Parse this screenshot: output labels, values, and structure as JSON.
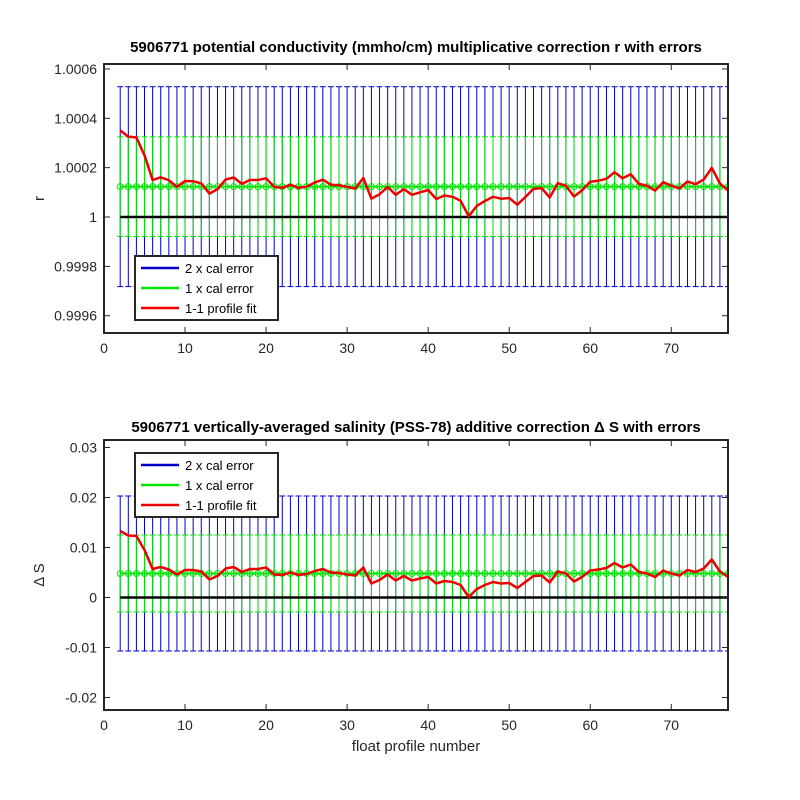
{
  "chart_data": [
    {
      "type": "line",
      "title": "5906771 potential conductivity (mmho/cm) multiplicative correction r with errors",
      "xlabel": "",
      "ylabel": "r",
      "xlim": [
        0,
        77
      ],
      "ylim": [
        0.99953,
        1.00062
      ],
      "x_ticks": [
        0,
        10,
        20,
        30,
        40,
        50,
        60,
        70
      ],
      "y_ticks": [
        0.9996,
        0.9998,
        1,
        1.0002,
        1.0004,
        1.0006
      ],
      "y_tick_labels": [
        "0.9996",
        "0.9998",
        "1",
        "1.0002",
        "1.0004",
        "1.0006"
      ],
      "x_tick_labels": [
        "0",
        "10",
        "20",
        "30",
        "40",
        "50",
        "60",
        "70"
      ],
      "reference_line": 1,
      "cal_value": 1.000123,
      "cal_error_2x": [
        0.999718,
        1.000528
      ],
      "cal_error_1x": [
        0.999921,
        1.000325
      ],
      "legend": {
        "placement": "bottom-left",
        "entries": [
          {
            "label": "2 x cal error",
            "color": "#0000cc"
          },
          {
            "label": "1 x cal error",
            "color": "#00e600"
          },
          {
            "label": "1-1 profile fit",
            "color": "#ee0000"
          }
        ]
      },
      "series": [
        {
          "name": "1-1 profile fit",
          "x": [
            2,
            3,
            4,
            5,
            6,
            7,
            8,
            9,
            10,
            11,
            12,
            13,
            14,
            15,
            16,
            17,
            18,
            19,
            20,
            21,
            22,
            23,
            24,
            25,
            26,
            27,
            28,
            29,
            30,
            31,
            32,
            33,
            34,
            35,
            36,
            37,
            38,
            39,
            40,
            41,
            42,
            43,
            44,
            45,
            46,
            47,
            48,
            49,
            50,
            51,
            52,
            53,
            54,
            55,
            56,
            57,
            58,
            59,
            60,
            61,
            62,
            63,
            64,
            65,
            66,
            67,
            68,
            69,
            70,
            71,
            72,
            73,
            74,
            75,
            76,
            77
          ],
          "values": [
            1.000351,
            1.000326,
            1.000322,
            1.00025,
            1.00015,
            1.000161,
            1.000149,
            1.000122,
            1.000146,
            1.000145,
            1.000136,
            1.000095,
            1.000113,
            1.000152,
            1.00016,
            1.000134,
            1.00015,
            1.00015,
            1.000157,
            1.000122,
            1.000118,
            1.000131,
            1.000118,
            1.000123,
            1.00014,
            1.000151,
            1.000131,
            1.000129,
            1.000122,
            1.000115,
            1.000158,
            1.000074,
            1.000092,
            1.000122,
            1.00009,
            1.000113,
            1.00009,
            1.0001,
            1.000109,
            1.000073,
            1.000087,
            1.000082,
            1.000066,
            1.000003,
            1.000045,
            1.000065,
            1.000082,
            1.000074,
            1.000077,
            1.00005,
            1.000081,
            1.000114,
            1.000117,
            1.000079,
            1.000137,
            1.000127,
            1.000083,
            1.000108,
            1.000143,
            1.000147,
            1.000155,
            1.000181,
            1.000157,
            1.000173,
            1.000134,
            1.000127,
            1.000107,
            1.000141,
            1.000127,
            1.000116,
            1.000144,
            1.000133,
            1.000152,
            1.000199,
            1.000136,
            1.000107
          ]
        }
      ]
    },
    {
      "type": "line",
      "title": "5906771 vertically-averaged salinity (PSS-78) additive correction Δ S with errors",
      "xlabel": "float profile number",
      "ylabel": "Δ S",
      "xlim": [
        0,
        77
      ],
      "ylim": [
        -0.0225,
        0.0315
      ],
      "x_ticks": [
        0,
        10,
        20,
        30,
        40,
        50,
        60,
        70
      ],
      "y_ticks": [
        -0.02,
        -0.01,
        0,
        0.01,
        0.02,
        0.03
      ],
      "y_tick_labels": [
        "-0.02",
        "-0.01",
        "0",
        "0.01",
        "0.02",
        "0.03"
      ],
      "x_tick_labels": [
        "0",
        "10",
        "20",
        "30",
        "40",
        "50",
        "60",
        "70"
      ],
      "reference_line": 0,
      "cal_value": 0.0048,
      "cal_error_2x": [
        -0.0107,
        0.0203
      ],
      "cal_error_1x": [
        -0.0029,
        0.0125
      ],
      "legend": {
        "placement": "top-left",
        "entries": [
          {
            "label": "2 x cal error",
            "color": "#0000cc"
          },
          {
            "label": "1 x cal error",
            "color": "#00e600"
          },
          {
            "label": "1-1 profile fit",
            "color": "#ee0000"
          }
        ]
      },
      "series": [
        {
          "name": "1-1 profile fit",
          "x": [
            2,
            3,
            4,
            5,
            6,
            7,
            8,
            9,
            10,
            11,
            12,
            13,
            14,
            15,
            16,
            17,
            18,
            19,
            20,
            21,
            22,
            23,
            24,
            25,
            26,
            27,
            28,
            29,
            30,
            31,
            32,
            33,
            34,
            35,
            36,
            37,
            38,
            39,
            40,
            41,
            42,
            43,
            44,
            45,
            46,
            47,
            48,
            49,
            50,
            51,
            52,
            53,
            54,
            55,
            56,
            57,
            58,
            59,
            60,
            61,
            62,
            63,
            64,
            65,
            66,
            67,
            68,
            69,
            70,
            71,
            72,
            73,
            74,
            75,
            76,
            77
          ],
          "values": [
            0.0133,
            0.0124,
            0.0123,
            0.0095,
            0.0057,
            0.0061,
            0.0056,
            0.0046,
            0.0055,
            0.0055,
            0.0052,
            0.0036,
            0.0043,
            0.0058,
            0.0061,
            0.0051,
            0.0057,
            0.0057,
            0.006,
            0.0046,
            0.0045,
            0.005,
            0.0045,
            0.0047,
            0.0053,
            0.0057,
            0.005,
            0.0049,
            0.0046,
            0.0044,
            0.006,
            0.0028,
            0.0035,
            0.0046,
            0.0034,
            0.0043,
            0.0034,
            0.0038,
            0.0041,
            0.0028,
            0.0033,
            0.0031,
            0.0025,
            0.0001,
            0.0017,
            0.0025,
            0.0031,
            0.0028,
            0.0029,
            0.0019,
            0.0031,
            0.0043,
            0.0044,
            0.003,
            0.0052,
            0.0048,
            0.0032,
            0.0041,
            0.0054,
            0.0056,
            0.0059,
            0.0069,
            0.006,
            0.0066,
            0.0051,
            0.0048,
            0.0041,
            0.0054,
            0.0048,
            0.0044,
            0.0055,
            0.0051,
            0.0058,
            0.0076,
            0.0052,
            0.0041
          ]
        }
      ]
    }
  ]
}
